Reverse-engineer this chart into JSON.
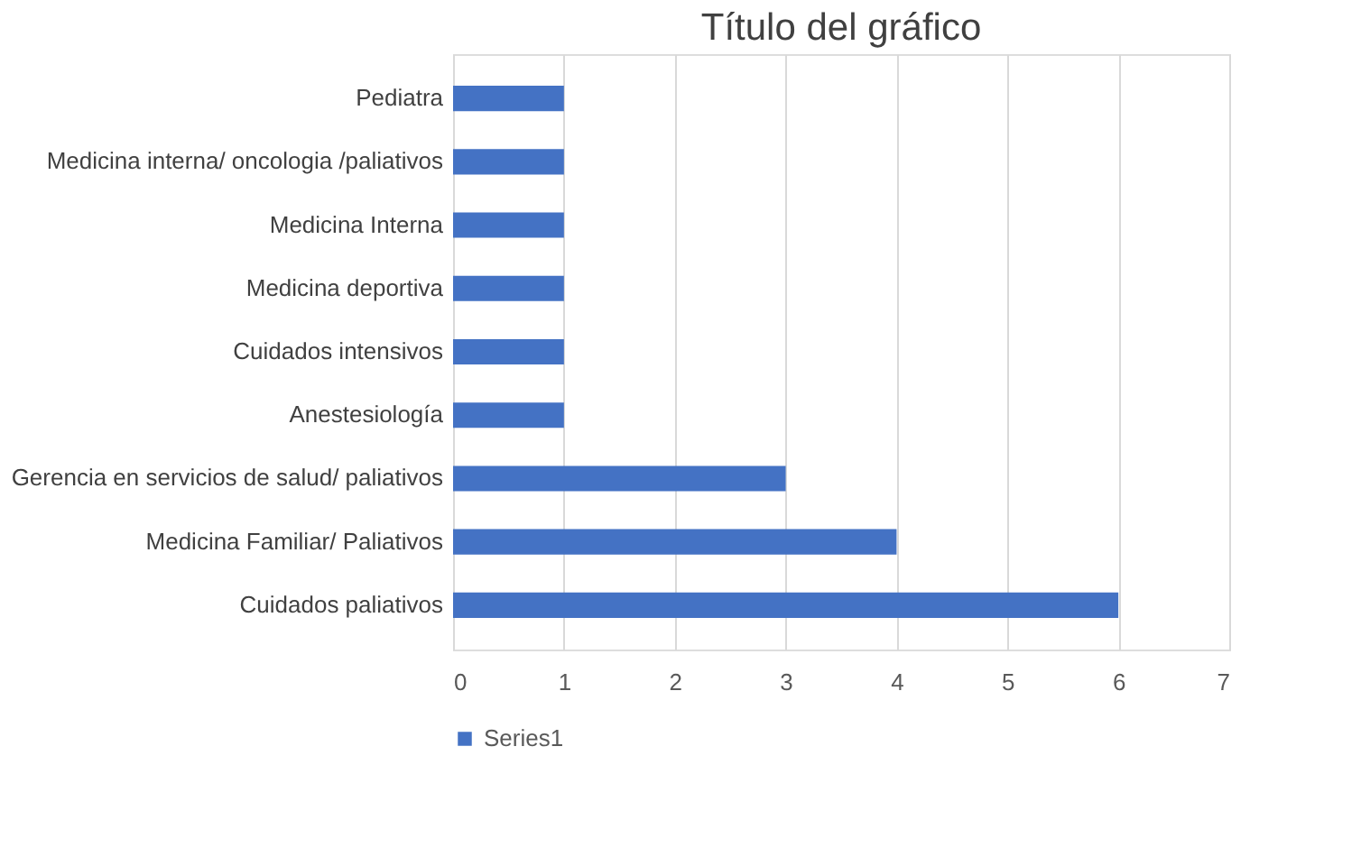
{
  "chart_data": {
    "type": "bar",
    "orientation": "horizontal",
    "title": "Título del gráfico",
    "categories": [
      "Pediatra",
      "Medicina interna/ oncologia /paliativos",
      "Medicina Interna",
      "Medicina deportiva",
      "Cuidados intensivos",
      "Anestesiología",
      "Gerencia en servicios de salud/ paliativos",
      "Medicina Familiar/ Paliativos",
      "Cuidados paliativos"
    ],
    "series": [
      {
        "name": "Series1",
        "color": "#4472c4",
        "values": [
          1,
          1,
          1,
          1,
          1,
          1,
          3,
          4,
          6
        ]
      }
    ],
    "xlim": [
      0,
      7
    ],
    "xticks": [
      0,
      1,
      2,
      3,
      4,
      5,
      6,
      7
    ],
    "grid": "x",
    "legend": "bottom"
  }
}
